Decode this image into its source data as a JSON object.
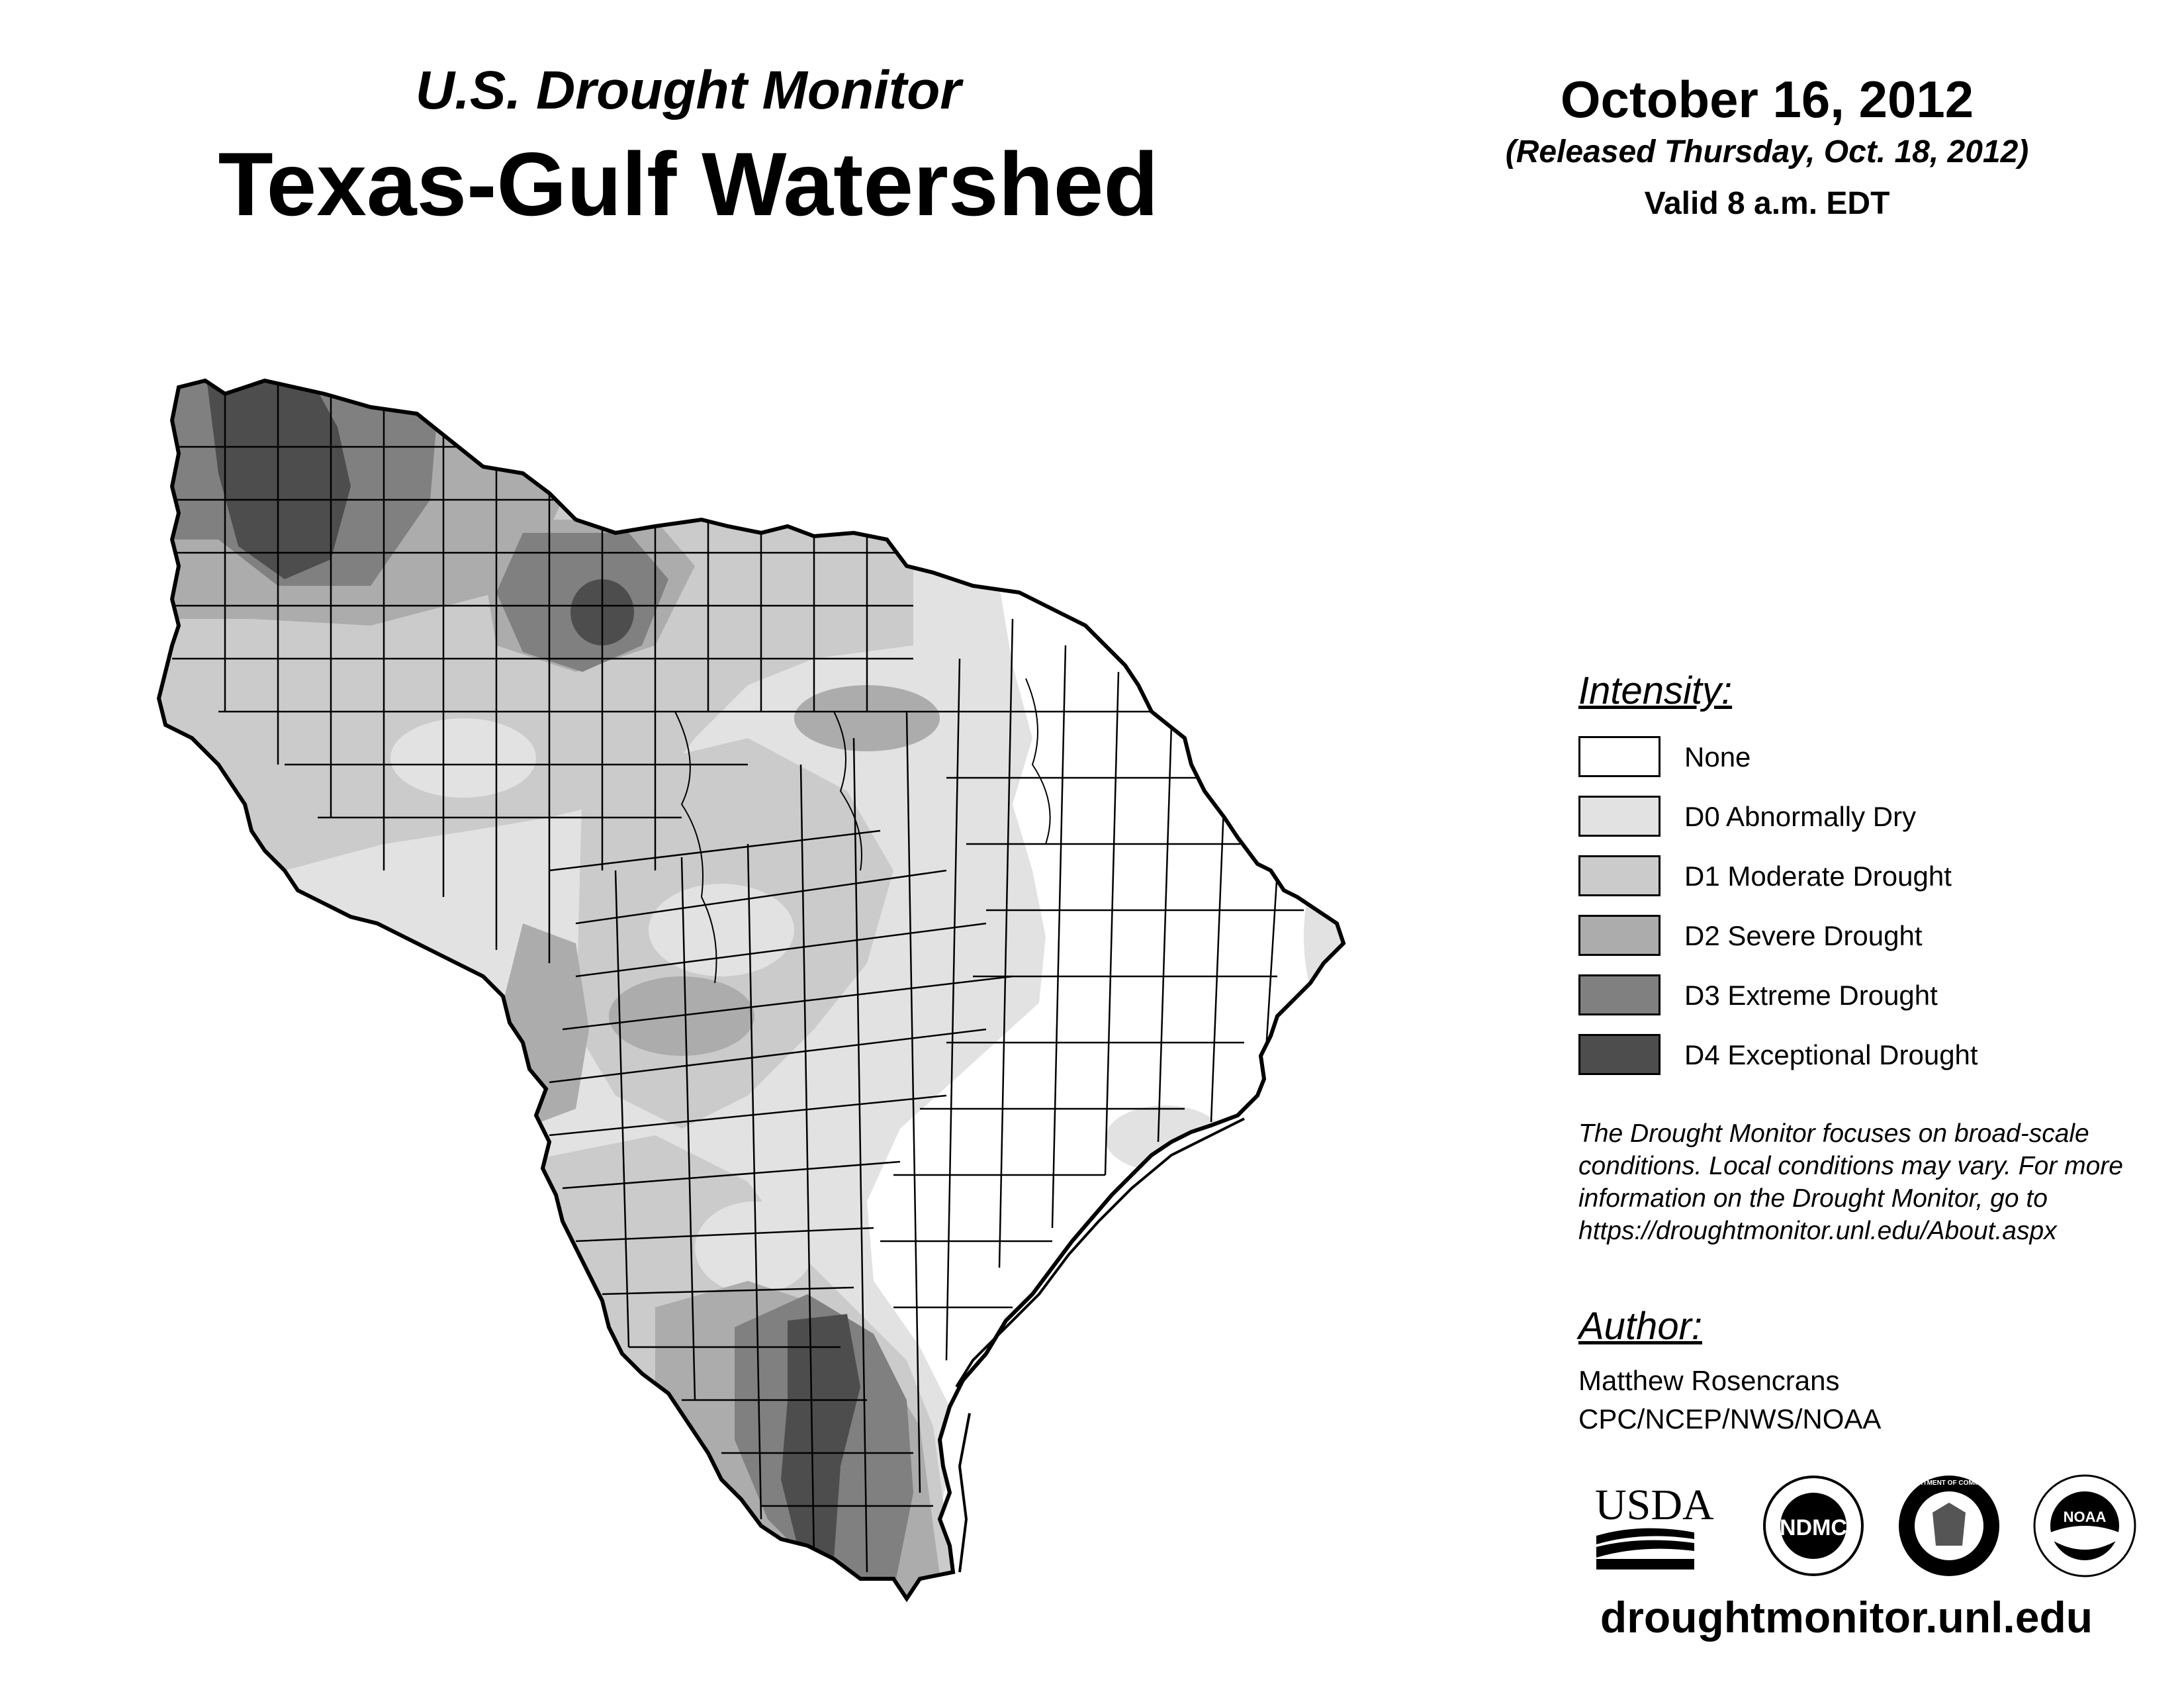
{
  "header": {
    "subtitle": "U.S. Drought Monitor",
    "title": "Texas-Gulf Watershed",
    "date": "October 16, 2012",
    "released": "(Released Thursday, Oct. 18, 2012)",
    "valid": "Valid 8 a.m. EDT"
  },
  "legend": {
    "title": "Intensity:",
    "items": [
      {
        "label": "None",
        "color": "#ffffff"
      },
      {
        "label": "D0 Abnormally Dry",
        "color": "#e2e2e2"
      },
      {
        "label": "D1 Moderate Drought",
        "color": "#cbcbcb"
      },
      {
        "label": "D2 Severe Drought",
        "color": "#acacac"
      },
      {
        "label": "D3 Extreme Drought",
        "color": "#808080"
      },
      {
        "label": "D4 Exceptional Drought",
        "color": "#4d4d4d"
      }
    ]
  },
  "note": "The Drought Monitor focuses on broad-scale conditions. Local conditions may vary. For more information on the Drought Monitor, go to https://droughtmonitor.unl.edu/About.aspx",
  "author": {
    "title": "Author:",
    "name": "Matthew Rosencrans",
    "org": "CPC/NCEP/NWS/NOAA"
  },
  "logos": {
    "usda": "USDA",
    "ndmc": "NDMC",
    "commerce_text": "DEPARTMENT OF COMMERCE",
    "noaa": "NOAA"
  },
  "website": "droughtmonitor.unl.edu"
}
